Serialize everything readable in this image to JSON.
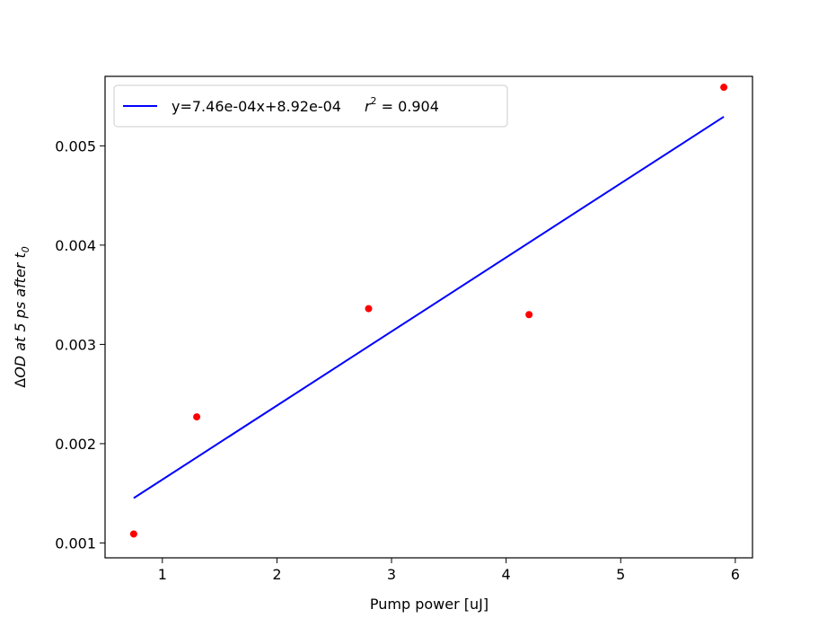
{
  "chart_data": {
    "type": "scatter",
    "xlabel": "Pump power [uJ]",
    "ylabel": {
      "prefix": "Δ",
      "main": "OD at 5 ps after t",
      "subscript": "0"
    },
    "xlim": [
      0.5,
      6.15
    ],
    "ylim": [
      0.00085,
      0.0057
    ],
    "x_ticks": [
      1,
      2,
      3,
      4,
      5,
      6
    ],
    "y_ticks": [
      0.001,
      0.002,
      0.003,
      0.004,
      0.005
    ],
    "x_tick_labels": [
      "1",
      "2",
      "3",
      "4",
      "5",
      "6"
    ],
    "y_tick_labels": [
      "0.001",
      "0.002",
      "0.003",
      "0.004",
      "0.005"
    ],
    "grid": false,
    "legend_position": "top-left",
    "series": [
      {
        "kind": "points",
        "color": "#ff0000",
        "x": [
          0.75,
          1.3,
          2.8,
          4.2,
          5.9
        ],
        "y": [
          0.00109,
          0.00227,
          0.00336,
          0.0033,
          0.00559
        ]
      },
      {
        "kind": "line",
        "color": "#0000ff",
        "name": "y=7.46e-04x+8.92e-04",
        "x": [
          0.75,
          5.9
        ],
        "y": [
          0.0014515,
          0.0052934
        ]
      }
    ],
    "legend": {
      "label": "y=7.46e-04x+8.92e-04",
      "r2_symbol": "r",
      "r2_exponent": "2",
      "r2_value": " = 0.904"
    }
  }
}
